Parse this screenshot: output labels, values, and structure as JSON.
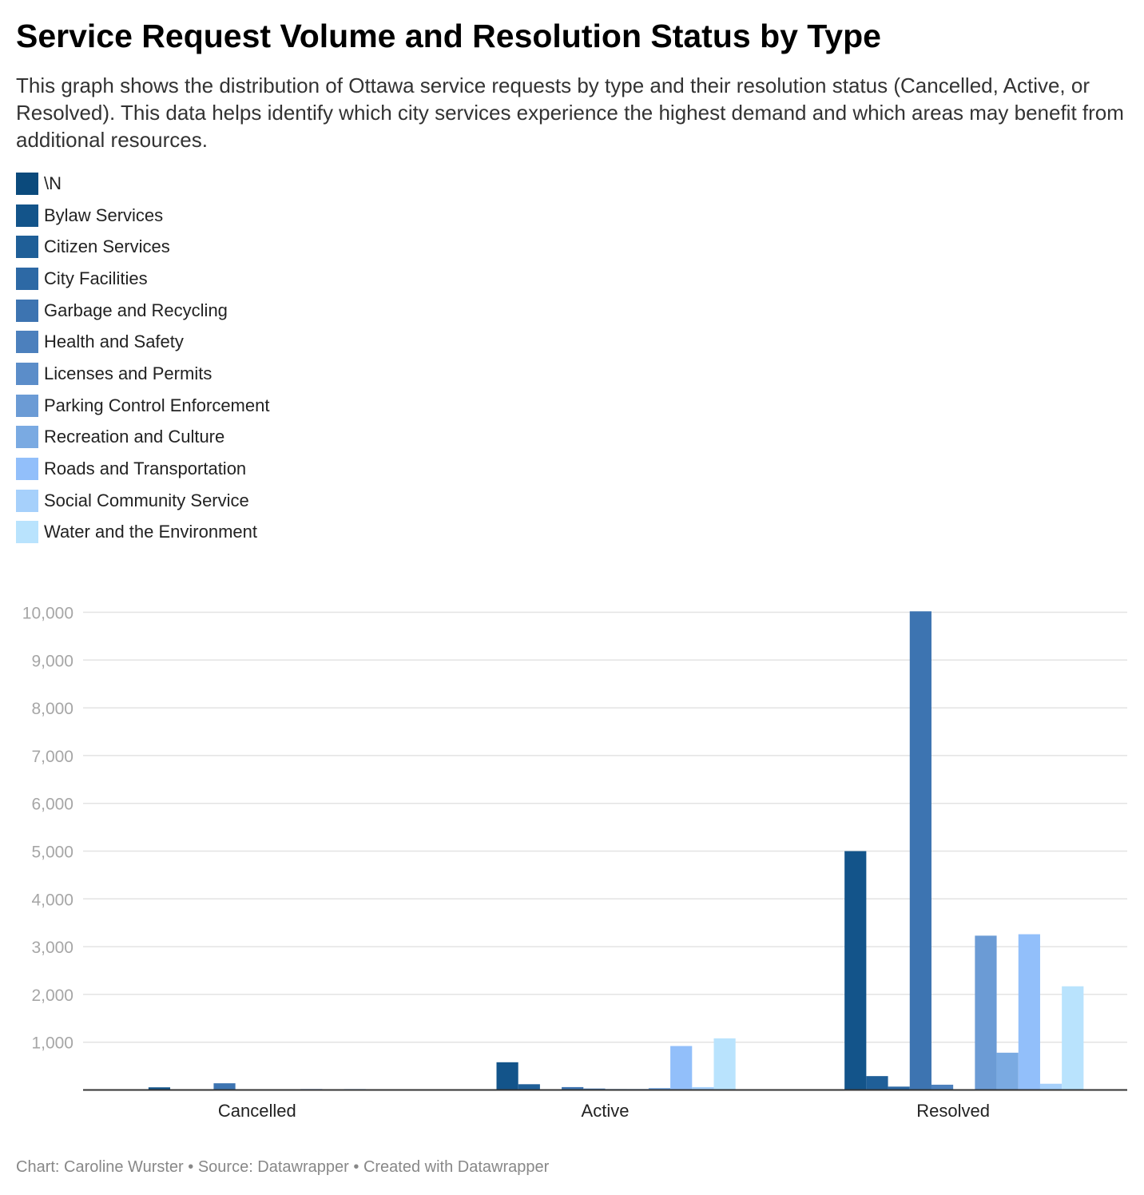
{
  "title": "Service Request Volume and Resolution Status by Type",
  "description": "This graph shows the distribution of Ottawa service requests by type and their resolution status (Cancelled, Active, or Resolved). This data helps identify which city services experience the highest demand and which areas may benefit from additional resources.",
  "footer": {
    "chart_by": "Chart: Caroline Wurster",
    "source": "Source: Datawrapper",
    "created": "Created with Datawrapper"
  },
  "chart_data": {
    "type": "bar",
    "title": "Service Request Volume and Resolution Status by Type",
    "xlabel": "",
    "ylabel": "",
    "categories": [
      "Cancelled",
      "Active",
      "Resolved"
    ],
    "ylim": [
      0,
      10000
    ],
    "yticks": [
      1000,
      2000,
      3000,
      4000,
      5000,
      6000,
      7000,
      8000,
      9000,
      10000
    ],
    "grid": true,
    "legend_position": "top-left",
    "series": [
      {
        "name": "\\N",
        "color": "#0b4a7c",
        "values": [
          0,
          0,
          0
        ]
      },
      {
        "name": "Bylaw Services",
        "color": "#13548a",
        "values": [
          55,
          580,
          5000
        ]
      },
      {
        "name": "Citizen Services",
        "color": "#1f5f98",
        "values": [
          0,
          120,
          290
        ]
      },
      {
        "name": "City Facilities",
        "color": "#2d69a5",
        "values": [
          0,
          0,
          70
        ]
      },
      {
        "name": "Garbage and Recycling",
        "color": "#3d74b1",
        "values": [
          140,
          60,
          10020
        ]
      },
      {
        "name": "Health and Safety",
        "color": "#4c80bd",
        "values": [
          0,
          30,
          110
        ]
      },
      {
        "name": "Licenses and Permits",
        "color": "#5b8dc9",
        "values": [
          0,
          20,
          0
        ]
      },
      {
        "name": "Parking Control Enforcement",
        "color": "#6b9bd5",
        "values": [
          0,
          20,
          3230
        ]
      },
      {
        "name": "Recreation and Culture",
        "color": "#7aaae2",
        "values": [
          20,
          40,
          780
        ]
      },
      {
        "name": "Roads and Transportation",
        "color": "#92bffa",
        "values": [
          0,
          920,
          3260
        ]
      },
      {
        "name": "Social Community Service",
        "color": "#a6d0fb",
        "values": [
          20,
          60,
          130
        ]
      },
      {
        "name": "Water and the Environment",
        "color": "#b9e3fd",
        "values": [
          0,
          1080,
          2170
        ]
      }
    ]
  }
}
